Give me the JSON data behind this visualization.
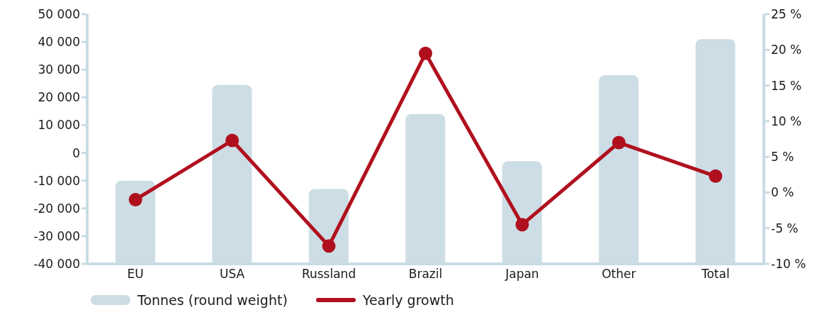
{
  "chart_data": {
    "type": "bar",
    "categories": [
      "EU",
      "USA",
      "Russland",
      "Brazil",
      "Japan",
      "Other",
      "Total"
    ],
    "series": [
      {
        "name": "Tonnes (round weight)",
        "color": "#cddde5",
        "base": [
          -40000,
          -40000,
          -40000,
          -40000,
          -40000,
          -40000,
          -40000
        ],
        "values": [
          30000,
          64500,
          27000,
          54000,
          37000,
          68000,
          81000
        ]
      },
      {
        "name": "Yearly growth",
        "type": "line",
        "axis": "y2",
        "color": "#b0101e",
        "values": [
          -1,
          7.3,
          -7.5,
          19.5,
          -4.5,
          7,
          2.3
        ]
      }
    ],
    "ylim": [
      -40000,
      50000
    ],
    "yticks": [
      {
        "value": -40000,
        "label": "-40 000"
      },
      {
        "value": -30000,
        "label": "-30 000"
      },
      {
        "value": -20000,
        "label": "-20 000"
      },
      {
        "value": -10000,
        "label": "-10 000"
      },
      0,
      {
        "value": 10000,
        "label": "10 000"
      },
      {
        "value": 20000,
        "label": "20 000"
      },
      {
        "value": 30000,
        "label": "30 000"
      },
      {
        "value": 40000,
        "label": "40 000"
      },
      {
        "value": 50000,
        "label": "50 000"
      }
    ],
    "y2lim": [
      -10,
      25
    ],
    "y2ticks": [
      {
        "value": -10,
        "label": "-10 %"
      },
      {
        "value": -5,
        "label": "-5 %"
      },
      {
        "value": 0,
        "label": "0 %"
      },
      {
        "value": 5,
        "label": "5 %"
      },
      {
        "value": 10,
        "label": "10 %"
      },
      {
        "value": 15,
        "label": "15 %"
      },
      {
        "value": 20,
        "label": "20 %"
      },
      {
        "value": 25,
        "label": "25 %"
      }
    ],
    "grid": false,
    "legend": "bottom",
    "marker": "circle",
    "line_style": "solid"
  }
}
